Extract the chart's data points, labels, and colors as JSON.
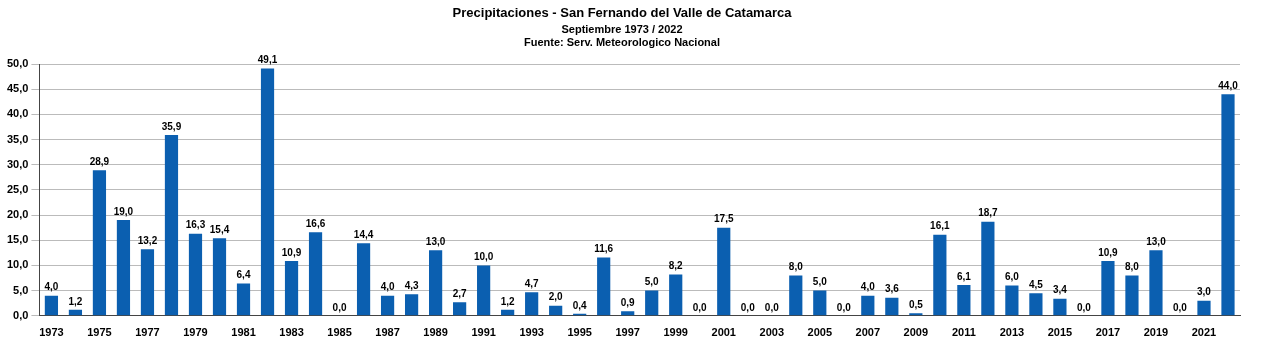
{
  "chart_data": {
    "type": "bar",
    "title": "Precipitaciones - San Fernando del Valle de Catamarca",
    "subtitle": "Septiembre 1973 / 2022",
    "annotations": [
      "Fuente: Serv. Meteorologico Nacional"
    ],
    "categories": [
      "1973",
      null,
      "1975",
      null,
      "1977",
      null,
      "1979",
      null,
      "1981",
      null,
      "1983",
      null,
      "1985",
      null,
      "1987",
      null,
      "1989",
      null,
      "1991",
      null,
      "1993",
      null,
      "1995",
      null,
      "1997",
      null,
      "1999",
      null,
      "2001",
      null,
      "2003",
      null,
      "2005",
      null,
      "2007",
      null,
      "2009",
      null,
      "2011",
      null,
      "2013",
      null,
      "2015",
      null,
      "2017",
      null,
      "2019",
      null,
      "2021",
      null
    ],
    "values": [
      4.0,
      1.2,
      28.9,
      19.0,
      13.2,
      35.9,
      16.3,
      15.4,
      6.4,
      49.1,
      10.9,
      16.6,
      0.0,
      14.4,
      4.0,
      4.3,
      13.0,
      2.7,
      10.0,
      1.2,
      4.7,
      2.0,
      0.4,
      11.6,
      0.9,
      5.0,
      8.2,
      0.0,
      17.5,
      0.0,
      0.0,
      8.0,
      5.0,
      0.0,
      4.0,
      3.6,
      0.5,
      16.1,
      6.1,
      18.7,
      6.0,
      4.5,
      3.4,
      0.0,
      10.9,
      8.0,
      13.0,
      0.0,
      3.0,
      44.0
    ],
    "value_labels": [
      "4,0",
      "1,2",
      "28,9",
      "19,0",
      "13,2",
      "35,9",
      "16,3",
      "15,4",
      "6,4",
      "49,1",
      "10,9",
      "16,6",
      "0,0",
      "14,4",
      "4,0",
      "4,3",
      "13,0",
      "2,7",
      "10,0",
      "1,2",
      "4,7",
      "2,0",
      "0,4",
      "11,6",
      "0,9",
      "5,0",
      "8,2",
      "0,0",
      "17,5",
      "0,0",
      "0,0",
      "8,0",
      "5,0",
      "0,0",
      "4,0",
      "3,6",
      "0,5",
      "16,1",
      "6,1",
      "18,7",
      "6,0",
      "4,5",
      "3,4",
      "0,0",
      "10,9",
      "8,0",
      "13,0",
      "0,0",
      "3,0",
      "44,0"
    ],
    "color": "#0b5fb0",
    "ylim": [
      0,
      50
    ],
    "yticks": [
      {
        "value": 0,
        "label": "0,0"
      },
      {
        "value": 5,
        "label": "5,0"
      },
      {
        "value": 10,
        "label": "10,0"
      },
      {
        "value": 15,
        "label": "15,0"
      },
      {
        "value": 20,
        "label": "20,0"
      },
      {
        "value": 25,
        "label": "25,0"
      },
      {
        "value": 30,
        "label": "30,0"
      },
      {
        "value": 35,
        "label": "35,0"
      },
      {
        "value": 40,
        "label": "40,0"
      },
      {
        "value": 45,
        "label": "45,0"
      },
      {
        "value": 50,
        "label": "50,0"
      }
    ],
    "grid": "y",
    "legend": false
  }
}
